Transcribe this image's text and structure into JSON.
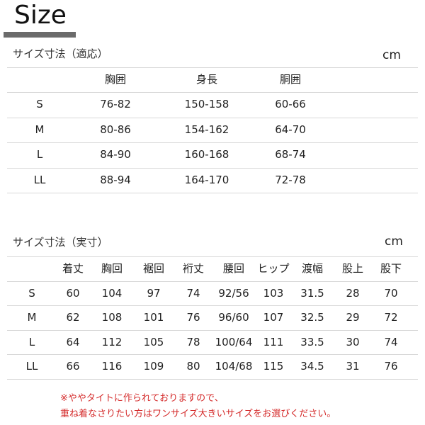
{
  "title": "Size",
  "fit_table": {
    "heading": "サイズ寸法（適応）",
    "unit": "cm",
    "columns": [
      "",
      "胸囲",
      "身長",
      "胴囲"
    ],
    "rows": [
      [
        "S",
        "76-82",
        "150-158",
        "60-66"
      ],
      [
        "M",
        "80-86",
        "154-162",
        "64-70"
      ],
      [
        "L",
        "84-90",
        "160-168",
        "68-74"
      ],
      [
        "LL",
        "88-94",
        "164-170",
        "72-78"
      ]
    ]
  },
  "actual_table": {
    "heading": "サイズ寸法（実寸）",
    "unit": "cm",
    "columns": [
      "",
      "着丈",
      "胸回",
      "裾回",
      "裄丈",
      "腰回",
      "ヒップ",
      "渡幅",
      "股上",
      "股下"
    ],
    "rows": [
      [
        "S",
        "60",
        "104",
        "97",
        "74",
        "92/56",
        "103",
        "31.5",
        "28",
        "70"
      ],
      [
        "M",
        "62",
        "108",
        "101",
        "76",
        "96/60",
        "107",
        "32.5",
        "29",
        "72"
      ],
      [
        "L",
        "64",
        "112",
        "105",
        "78",
        "100/64",
        "111",
        "33.5",
        "30",
        "74"
      ],
      [
        "LL",
        "66",
        "116",
        "109",
        "80",
        "104/68",
        "115",
        "34.5",
        "31",
        "76"
      ]
    ]
  },
  "notes": [
    "※ややタイトに作られておりますので、",
    "重ね着なさりたい方はワンサイズ大きいサイズをお選びください。"
  ],
  "colors": {
    "accent_bar": "#6b6b6b",
    "note": "#d42a2a"
  }
}
